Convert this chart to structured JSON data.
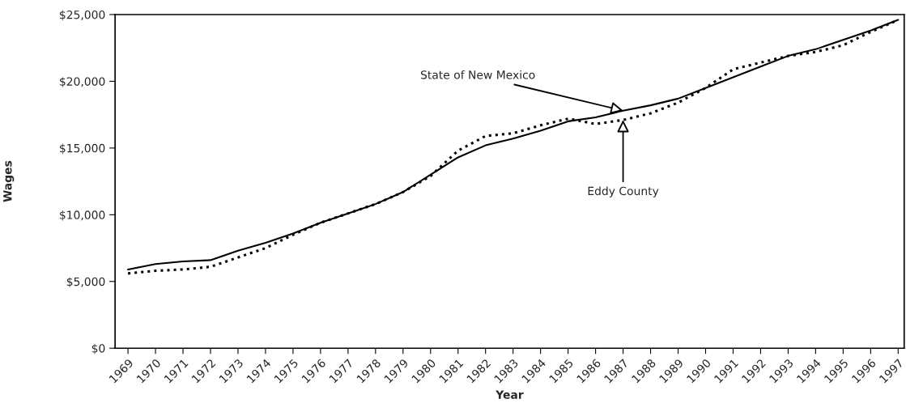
{
  "chart_data": {
    "type": "line",
    "xlabel": "Year",
    "ylabel": "Wages",
    "categories": [
      "1969",
      "1970",
      "1971",
      "1972",
      "1973",
      "1974",
      "1975",
      "1976",
      "1977",
      "1978",
      "1979",
      "1980",
      "1981",
      "1982",
      "1983",
      "1984",
      "1985",
      "1986",
      "1987",
      "1988",
      "1989",
      "1990",
      "1991",
      "1992",
      "1993",
      "1994",
      "1995",
      "1996",
      "1997"
    ],
    "series": [
      {
        "color": "#000000",
        "line_style": "solid",
        "values": [
          5900,
          6300,
          6500,
          6600,
          7300,
          7900,
          8600,
          9400,
          10100,
          10800,
          11700,
          13000,
          14300,
          15200,
          15700,
          16300,
          17000,
          17300,
          17800,
          18200,
          18700,
          19500,
          20300,
          21100,
          21900,
          22400,
          23100,
          23800,
          24600
        ]
      },
      {
        "color": "#000000",
        "line_style": "dotted",
        "values": [
          5600,
          5800,
          5900,
          6100,
          6800,
          7500,
          8500,
          9400,
          10100,
          10800,
          11700,
          12900,
          14800,
          15900,
          16100,
          16700,
          17200,
          16800,
          17100,
          17600,
          18400,
          19500,
          20900,
          21400,
          21900,
          22200,
          22700,
          23700,
          24600
        ]
      }
    ],
    "ylim": [
      0,
      25000
    ],
    "yticks": [
      {
        "value": 0,
        "label": "$0"
      },
      {
        "value": 5000,
        "label": "$5,000"
      },
      {
        "value": 10000,
        "label": "$10,000"
      },
      {
        "value": 15000,
        "label": "$15,000"
      },
      {
        "value": 20000,
        "label": "$20,000"
      },
      {
        "value": 25000,
        "label": "$25,000"
      }
    ],
    "grid": false,
    "annotations": [
      {
        "text": "State of New Mexico",
        "x": "1987",
        "y": 17800
      },
      {
        "text": "Eddy County",
        "x": "1987",
        "y": 17100
      }
    ]
  }
}
